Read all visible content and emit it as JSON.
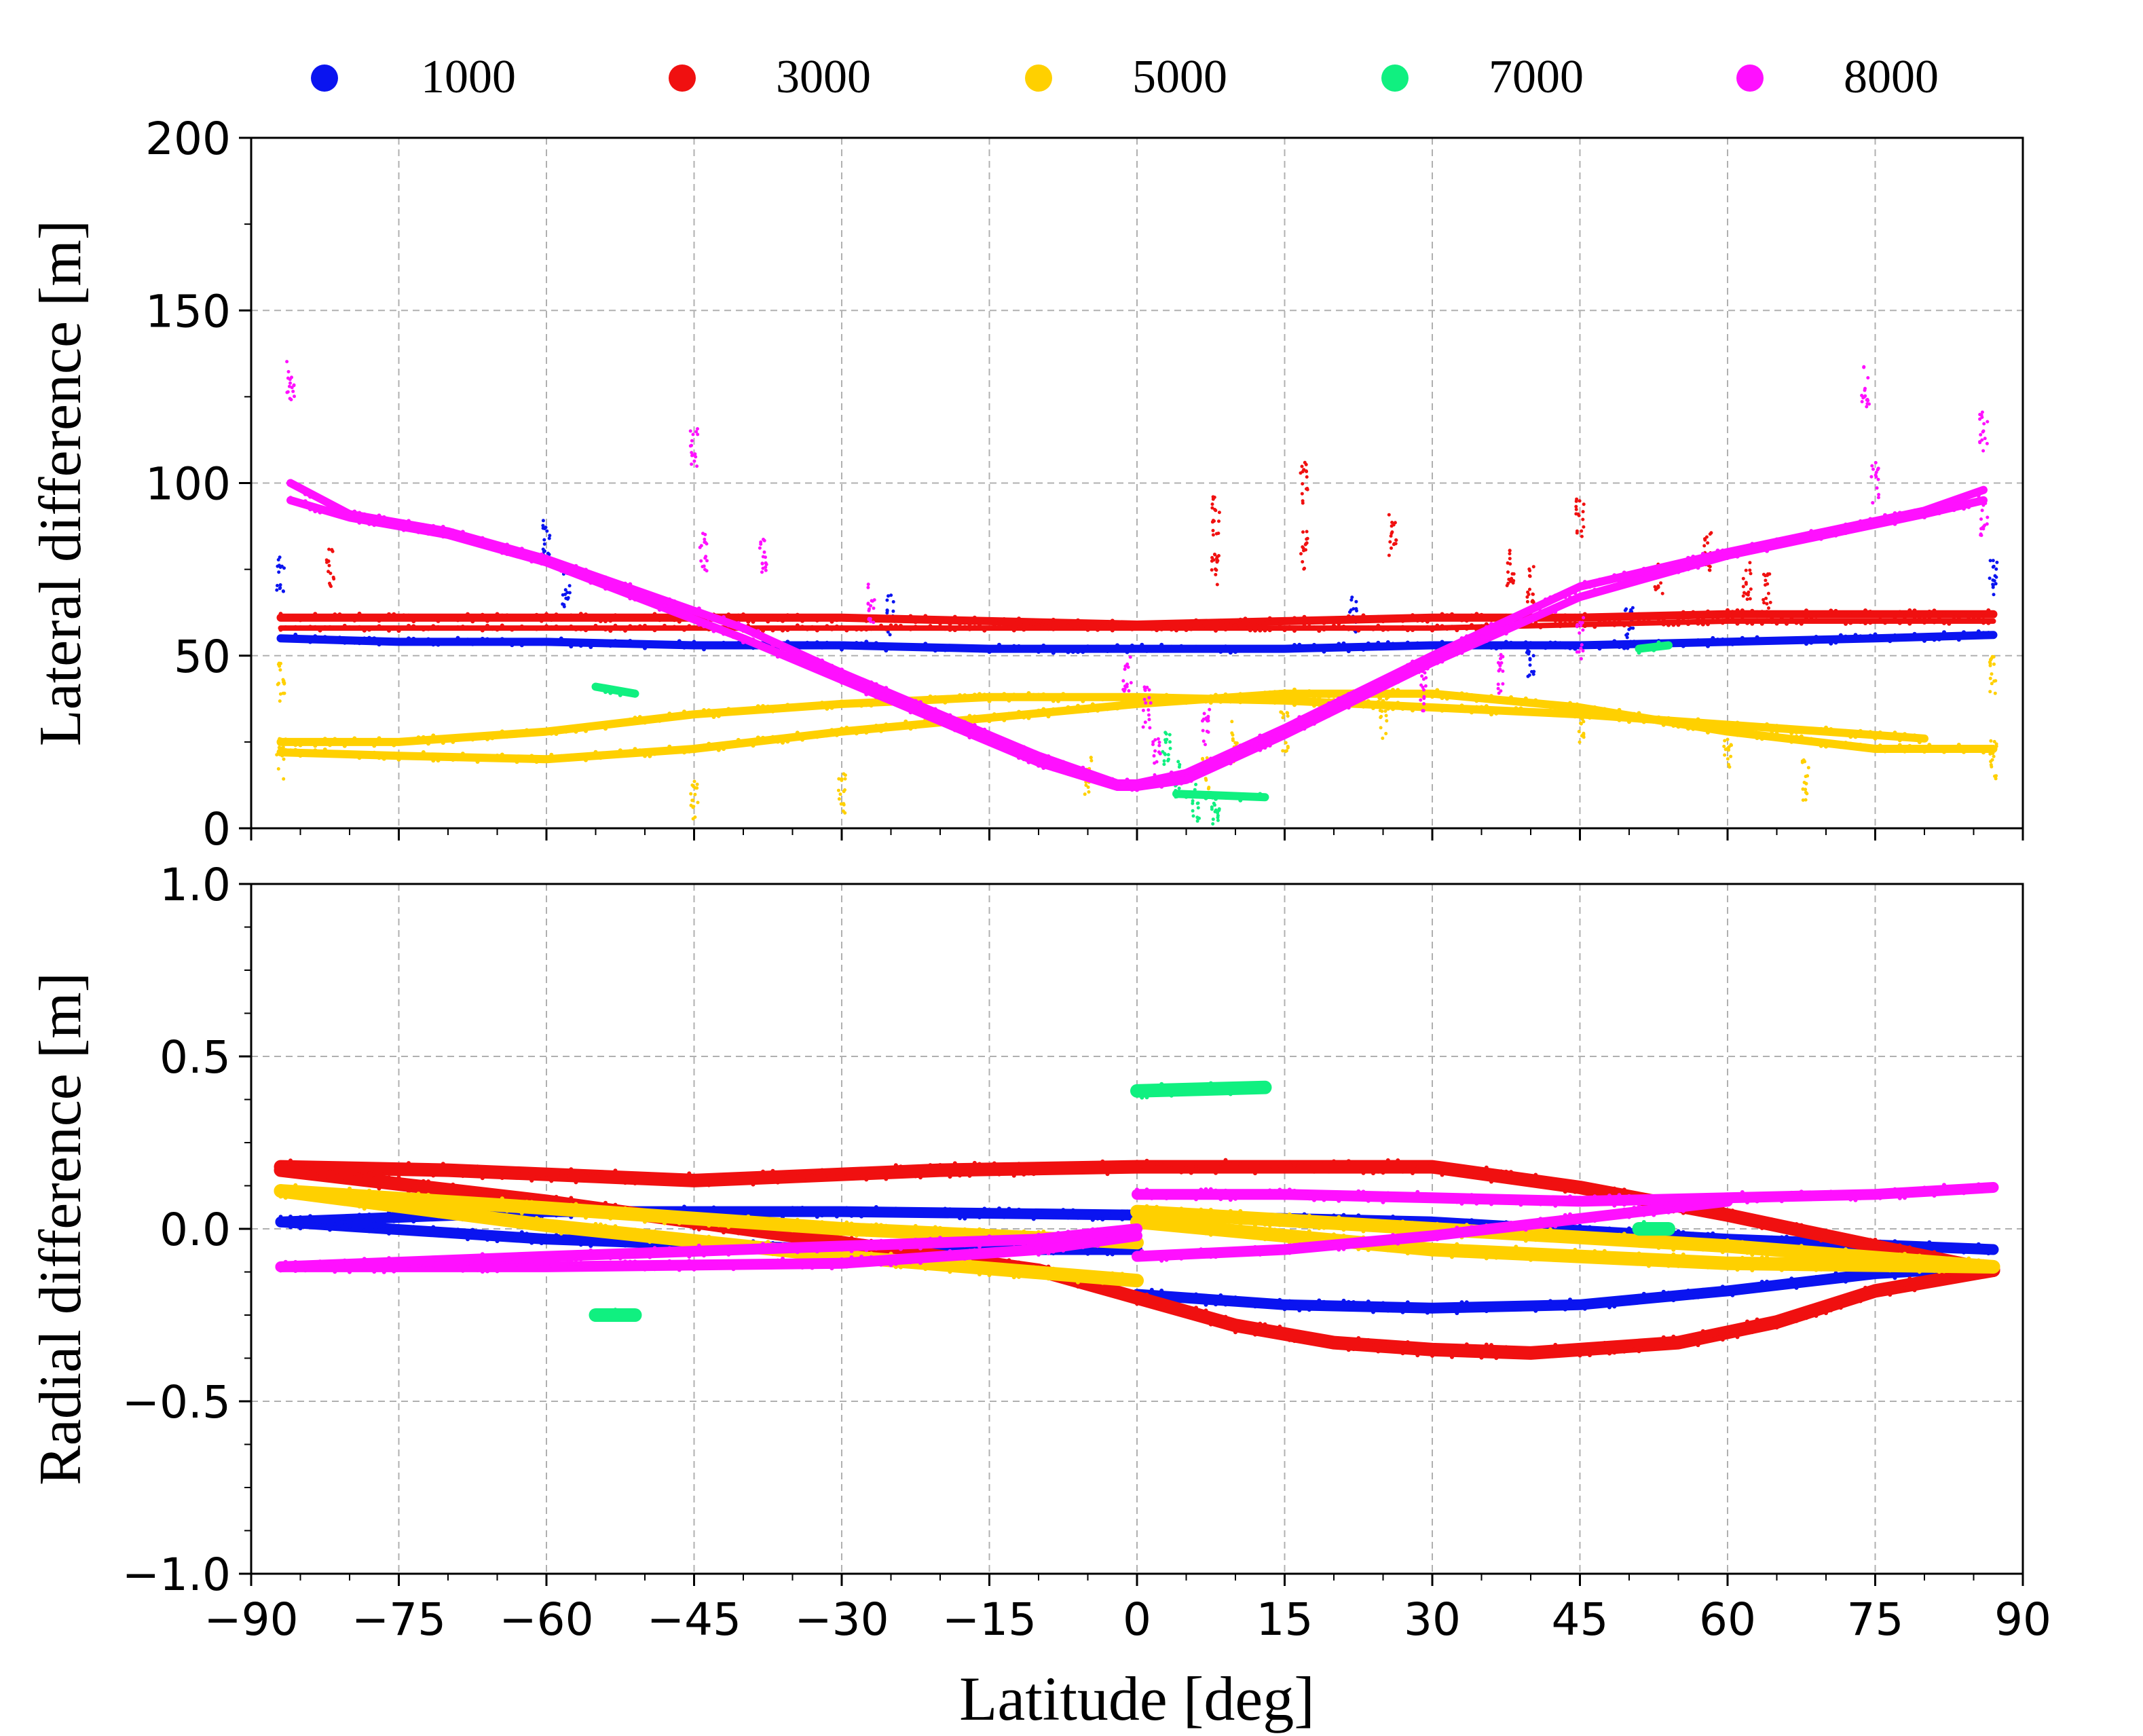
{
  "chart_data": [
    {
      "type": "scatter",
      "panel": "top",
      "ylabel": "Lateral difference [m]",
      "xlabel": "",
      "xlim": [
        -90,
        90
      ],
      "ylim": [
        0,
        200
      ],
      "xticks": [
        -90,
        -75,
        -60,
        -45,
        -30,
        -15,
        0,
        15,
        30,
        45,
        60,
        75,
        90
      ],
      "yticks": [
        0,
        50,
        100,
        150,
        200
      ],
      "ytick_labels": [
        "0",
        "50",
        "100",
        "150",
        "200"
      ],
      "grid": true,
      "legend": {
        "position": "top",
        "entries": [
          {
            "label": "1000",
            "color": "#0a14f0"
          },
          {
            "label": "3000",
            "color": "#f01010"
          },
          {
            "label": "5000",
            "color": "#ffd000"
          },
          {
            "label": "7000",
            "color": "#10f080"
          },
          {
            "label": "8000",
            "color": "#ff10ff"
          }
        ]
      },
      "series": [
        {
          "name": "1000",
          "color": "#0a14f0",
          "bands": [
            {
              "x": [
                -87,
                -75,
                -60,
                -45,
                -30,
                -15,
                0,
                15,
                30,
                45,
                60,
                75,
                87
              ],
              "y": [
                55,
                54,
                54,
                53,
                53,
                52,
                52,
                52,
                53,
                53,
                54,
                55,
                56
              ],
              "width": 3
            }
          ],
          "scatter_x": [
            -60,
            -58,
            87,
            -87,
            -25,
            22,
            40,
            50
          ],
          "scatter_y": [
            85,
            70,
            72,
            73,
            62,
            62,
            48,
            58
          ]
        },
        {
          "name": "3000",
          "color": "#f01010",
          "bands": [
            {
              "x": [
                -87,
                -75,
                -60,
                -45,
                -30,
                -15,
                0,
                15,
                30,
                45,
                60,
                75,
                87
              ],
              "y": [
                61,
                61,
                61,
                61,
                61,
                60,
                59,
                60,
                61,
                61,
                62,
                62,
                62
              ],
              "width": 3
            },
            {
              "x": [
                -87,
                -75,
                -60,
                -45,
                -30,
                -15,
                0,
                15,
                30,
                45,
                60,
                75,
                87
              ],
              "y": [
                58,
                58,
                58,
                58,
                58,
                58,
                58,
                58,
                58,
                59,
                60,
                60,
                60
              ],
              "width": 2
            }
          ],
          "scatter_x": [
            -82,
            8,
            8,
            17,
            17,
            26,
            38,
            40,
            45,
            53,
            58,
            62,
            64
          ],
          "scatter_y": [
            75,
            90,
            75,
            100,
            80,
            85,
            75,
            70,
            90,
            72,
            80,
            72,
            68
          ]
        },
        {
          "name": "5000",
          "color": "#ffd000",
          "bands": [
            {
              "x": [
                -87,
                -75,
                -60,
                -45,
                -30,
                -15,
                0,
                15,
                30,
                45,
                60,
                75,
                80
              ],
              "y": [
                25,
                25,
                28,
                33,
                36,
                38,
                38,
                37,
                35,
                33,
                30,
                27,
                26
              ],
              "width": 3
            },
            {
              "x": [
                -87,
                -75,
                -60,
                -45,
                -30,
                -15,
                0,
                15,
                30,
                45,
                60,
                75,
                87
              ],
              "y": [
                22,
                21,
                20,
                23,
                28,
                32,
                36,
                39,
                39,
                35,
                28,
                23,
                23
              ],
              "width": 3
            }
          ],
          "scatter_x": [
            -87,
            -87,
            87,
            87,
            -45,
            -30,
            -5,
            7,
            10,
            15,
            25,
            45,
            60,
            68
          ],
          "scatter_y": [
            42,
            20,
            44,
            20,
            8,
            10,
            15,
            15,
            25,
            28,
            32,
            30,
            22,
            14
          ]
        },
        {
          "name": "7000",
          "color": "#10f080",
          "bands": [
            {
              "x": [
                -55,
                -51
              ],
              "y": [
                41,
                39
              ],
              "width": 3
            },
            {
              "x": [
                4,
                13
              ],
              "y": [
                10,
                9
              ],
              "width": 3
            },
            {
              "x": [
                51,
                54
              ],
              "y": [
                52,
                53
              ],
              "width": 3
            }
          ],
          "scatter_x": [
            4,
            6,
            8,
            3
          ],
          "scatter_y": [
            14,
            7,
            5,
            22
          ]
        },
        {
          "name": "8000",
          "color": "#ff10ff",
          "bands": [
            {
              "x": [
                -86,
                -80,
                -70,
                -60,
                -50,
                -40,
                -30,
                -20,
                -10,
                -2,
                0,
                5,
                15,
                30,
                45,
                60,
                70,
                80,
                86
              ],
              "y": [
                100,
                91,
                86,
                78,
                68,
                58,
                45,
                33,
                21,
                13,
                13,
                16,
                29,
                50,
                70,
                80,
                86,
                92,
                98
              ],
              "width": 3
            },
            {
              "x": [
                -86,
                -80,
                -70,
                -60,
                -50,
                -40,
                -30,
                -20,
                -10,
                -2,
                0,
                5,
                15,
                30,
                45,
                60,
                70,
                80,
                86
              ],
              "y": [
                95,
                90,
                85,
                77,
                66,
                55,
                43,
                31,
                19,
                12,
                12,
                14,
                27,
                48,
                67,
                79,
                85,
                91,
                95
              ],
              "width": 3
            }
          ],
          "scatter_x": [
            -86,
            -45,
            -44,
            -38,
            -27,
            -1,
            1,
            2,
            7,
            29,
            74,
            75,
            86,
            86,
            37,
            45
          ],
          "scatter_y": [
            130,
            110,
            80,
            80,
            65,
            45,
            35,
            20,
            30,
            40,
            128,
            100,
            115,
            90,
            45,
            55
          ]
        }
      ]
    },
    {
      "type": "scatter",
      "panel": "bottom",
      "ylabel": "Radial difference [m]",
      "xlabel": "Latitude [deg]",
      "xlim": [
        -90,
        90
      ],
      "ylim": [
        -1.0,
        1.0
      ],
      "xticks": [
        -90,
        -75,
        -60,
        -45,
        -30,
        -15,
        0,
        15,
        30,
        45,
        60,
        75,
        90
      ],
      "xtick_labels": [
        "−90",
        "−75",
        "−60",
        "−45",
        "−30",
        "−15",
        "0",
        "15",
        "30",
        "45",
        "60",
        "75",
        "90"
      ],
      "yticks": [
        -1.0,
        -0.5,
        0.0,
        0.5,
        1.0
      ],
      "ytick_labels": [
        "−1.0",
        "−0.5",
        "0.0",
        "0.5",
        "1.0"
      ],
      "grid": true,
      "series": [
        {
          "name": "1000",
          "color": "#0a14f0",
          "bands": [
            {
              "x": [
                -87,
                -60,
                -30,
                0
              ],
              "y": [
                0.02,
                0.05,
                0.05,
                0.04
              ],
              "width": 4
            },
            {
              "x": [
                -87,
                -60,
                -30,
                0
              ],
              "y": [
                0.02,
                -0.03,
                -0.06,
                -0.06
              ],
              "width": 4
            },
            {
              "x": [
                0,
                30,
                60,
                87
              ],
              "y": [
                0.04,
                0.02,
                -0.03,
                -0.06
              ],
              "width": 4
            },
            {
              "x": [
                0,
                15,
                30,
                45,
                60,
                75,
                87
              ],
              "y": [
                -0.19,
                -0.22,
                -0.23,
                -0.22,
                -0.18,
                -0.13,
                -0.11
              ],
              "width": 4
            }
          ]
        },
        {
          "name": "3000",
          "color": "#f01010",
          "bands": [
            {
              "x": [
                -87,
                -70,
                -45,
                -20,
                0,
                20,
                30,
                45,
                60,
                75,
                87
              ],
              "y": [
                0.18,
                0.17,
                0.14,
                0.17,
                0.18,
                0.18,
                0.18,
                0.12,
                0.04,
                -0.05,
                -0.12
              ],
              "width": 5
            },
            {
              "x": [
                -87,
                -60,
                -30,
                -10,
                0,
                10,
                20,
                30,
                40,
                55,
                65,
                75,
                87
              ],
              "y": [
                0.17,
                0.08,
                -0.04,
                -0.12,
                -0.2,
                -0.28,
                -0.33,
                -0.35,
                -0.36,
                -0.33,
                -0.27,
                -0.18,
                -0.12
              ],
              "width": 5
            }
          ]
        },
        {
          "name": "5000",
          "color": "#ffd000",
          "bands": [
            {
              "x": [
                -87,
                -60,
                -30,
                0
              ],
              "y": [
                0.11,
                0.06,
                0.0,
                -0.04
              ],
              "width": 5
            },
            {
              "x": [
                -87,
                -60,
                -30,
                0
              ],
              "y": [
                0.11,
                0.01,
                -0.08,
                -0.15
              ],
              "width": 5
            },
            {
              "x": [
                0,
                30,
                60,
                87
              ],
              "y": [
                0.05,
                0.0,
                -0.05,
                -0.11
              ],
              "width": 5
            },
            {
              "x": [
                0,
                30,
                60,
                87
              ],
              "y": [
                0.02,
                -0.06,
                -0.1,
                -0.11
              ],
              "width": 5
            }
          ]
        },
        {
          "name": "7000",
          "color": "#10f080",
          "bands": [
            {
              "x": [
                0,
                13
              ],
              "y": [
                0.4,
                0.41
              ],
              "width": 5
            },
            {
              "x": [
                -55,
                -51
              ],
              "y": [
                -0.25,
                -0.25
              ],
              "width": 5
            },
            {
              "x": [
                51,
                54
              ],
              "y": [
                0.0,
                0.0
              ],
              "width": 5
            }
          ]
        },
        {
          "name": "8000",
          "color": "#ff10ff",
          "bands": [
            {
              "x": [
                -87,
                -60,
                -30,
                -10,
                0
              ],
              "y": [
                -0.11,
                -0.11,
                -0.1,
                -0.06,
                -0.02
              ],
              "width": 4
            },
            {
              "x": [
                -87,
                -60,
                -30,
                -10,
                0
              ],
              "y": [
                -0.11,
                -0.08,
                -0.05,
                -0.03,
                0.0
              ],
              "width": 4
            },
            {
              "x": [
                0,
                15,
                30,
                45,
                60,
                75,
                87
              ],
              "y": [
                0.1,
                0.1,
                0.09,
                0.08,
                0.09,
                0.1,
                0.12
              ],
              "width": 4
            },
            {
              "x": [
                0,
                15,
                30,
                45,
                60
              ],
              "y": [
                -0.08,
                -0.06,
                -0.02,
                0.03,
                0.08
              ],
              "width": 4
            }
          ]
        }
      ]
    }
  ]
}
